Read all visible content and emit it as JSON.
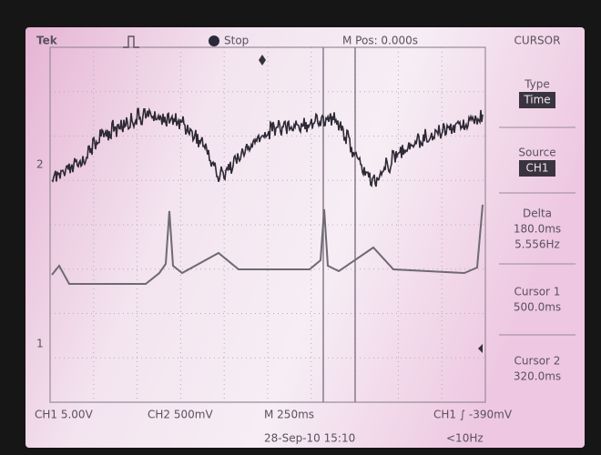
{
  "header": {
    "brand": "Tek",
    "status": "Stop",
    "position": "M Pos: 0.000s",
    "menu": "CURSOR"
  },
  "side_menu": [
    {
      "label": "Type",
      "values": [
        "Time"
      ]
    },
    {
      "label": "Source",
      "values": [
        "CH1"
      ]
    },
    {
      "label": "Delta",
      "values": [
        "180.0ms",
        "5.556Hz"
      ]
    },
    {
      "label": "Cursor 1",
      "values": [
        "500.0ms"
      ]
    },
    {
      "label": "Cursor 2",
      "values": [
        "320.0ms"
      ]
    }
  ],
  "markers": {
    "ch2": "2",
    "ch1": "1"
  },
  "footer": {
    "ch1": "CH1 5.00V",
    "ch2": "CH2 500mV",
    "timebase": "M 250ms",
    "trigger": "CH1 ∫ -390mV",
    "date": "28-Sep-10 15:10",
    "frequency": "<10Hz"
  }
}
